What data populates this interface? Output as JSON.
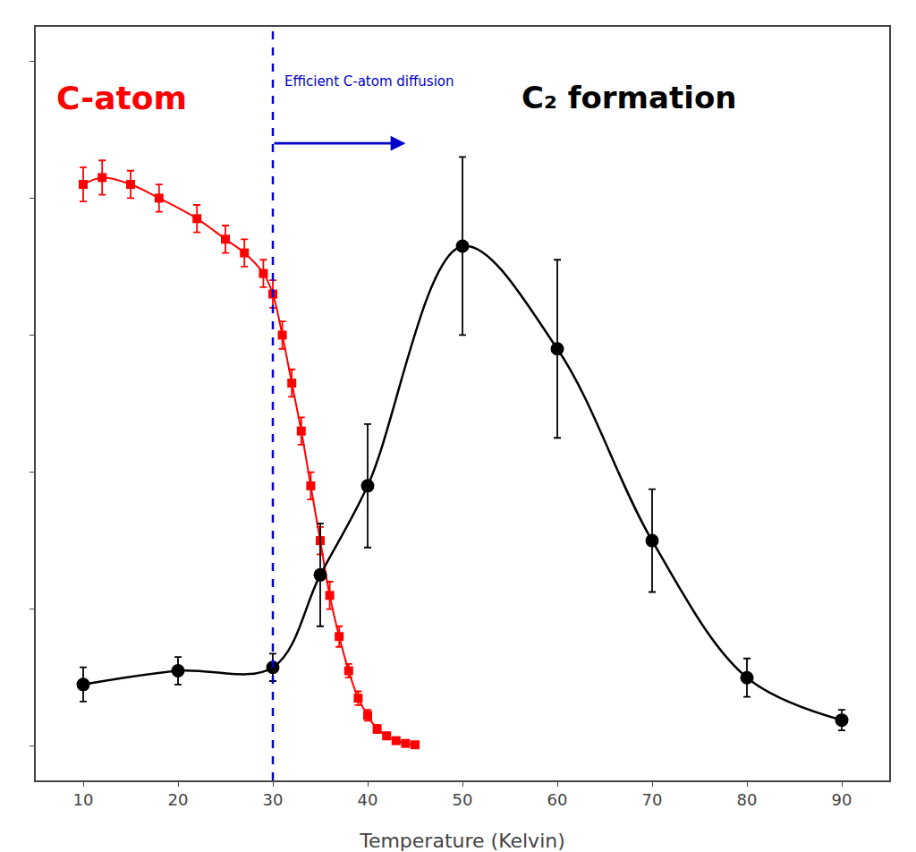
{
  "chart_data": {
    "type": "line",
    "xlabel": "Temperature (Kelvin)",
    "xlim": [
      5,
      95
    ],
    "ylim": [
      -0.05,
      1.05
    ],
    "xticks": [
      10,
      20,
      30,
      40,
      50,
      60,
      70,
      80,
      90
    ],
    "yticks": [
      0,
      0.2,
      0.4,
      0.6,
      0.8,
      1.0
    ],
    "tick_labels": "x",
    "grid": false,
    "series": [
      {
        "x": [
          10,
          12,
          15,
          18,
          22,
          25,
          27,
          29,
          30,
          31,
          32,
          33,
          34,
          35,
          36,
          37,
          38,
          39,
          40,
          41,
          42,
          43,
          44,
          45
        ],
        "values": [
          0.82,
          0.83,
          0.82,
          0.8,
          0.77,
          0.74,
          0.72,
          0.69,
          0.66,
          0.6,
          0.53,
          0.46,
          0.38,
          0.3,
          0.22,
          0.16,
          0.11,
          0.07,
          0.045,
          0.025,
          0.015,
          0.008,
          0.004,
          0.002
        ],
        "yerr": [
          0.025,
          0.025,
          0.02,
          0.02,
          0.02,
          0.02,
          0.02,
          0.02,
          0.02,
          0.02,
          0.02,
          0.02,
          0.02,
          0.02,
          0.02,
          0.015,
          0.01,
          0.01,
          0.008,
          0.006,
          0.005,
          0.004,
          0.003,
          0.002
        ],
        "color": "#ff0000",
        "marker": "square",
        "line_style": "solid"
      },
      {
        "x": [
          10,
          20,
          30,
          35,
          40,
          50,
          60,
          70,
          80,
          90
        ],
        "values": [
          0.09,
          0.11,
          0.115,
          0.25,
          0.38,
          0.73,
          0.58,
          0.3,
          0.1,
          0.038
        ],
        "yerr": [
          0.025,
          0.02,
          0.02,
          0.075,
          0.09,
          0.13,
          0.13,
          0.075,
          0.028,
          0.015
        ],
        "color": "#000000",
        "marker": "circle",
        "line_style": "solid"
      }
    ],
    "vlines": [
      {
        "x": 30,
        "color": "#0000cc",
        "line_style": "dashed"
      }
    ],
    "annotations": [
      {
        "text": "Efficient C-atom diffusion",
        "x": 31,
        "y": 0.985,
        "color": "#0000cc"
      },
      {
        "text": "C-atom",
        "x": 7,
        "y": 0.975,
        "color": "#ff0000"
      },
      {
        "text": "C₂ formation",
        "x": 56,
        "y": 0.975,
        "color": "#000000"
      },
      {
        "x": 44,
        "y": 0.88,
        "ax": 30,
        "ay": 0.88,
        "color": "#0000cc"
      }
    ]
  }
}
